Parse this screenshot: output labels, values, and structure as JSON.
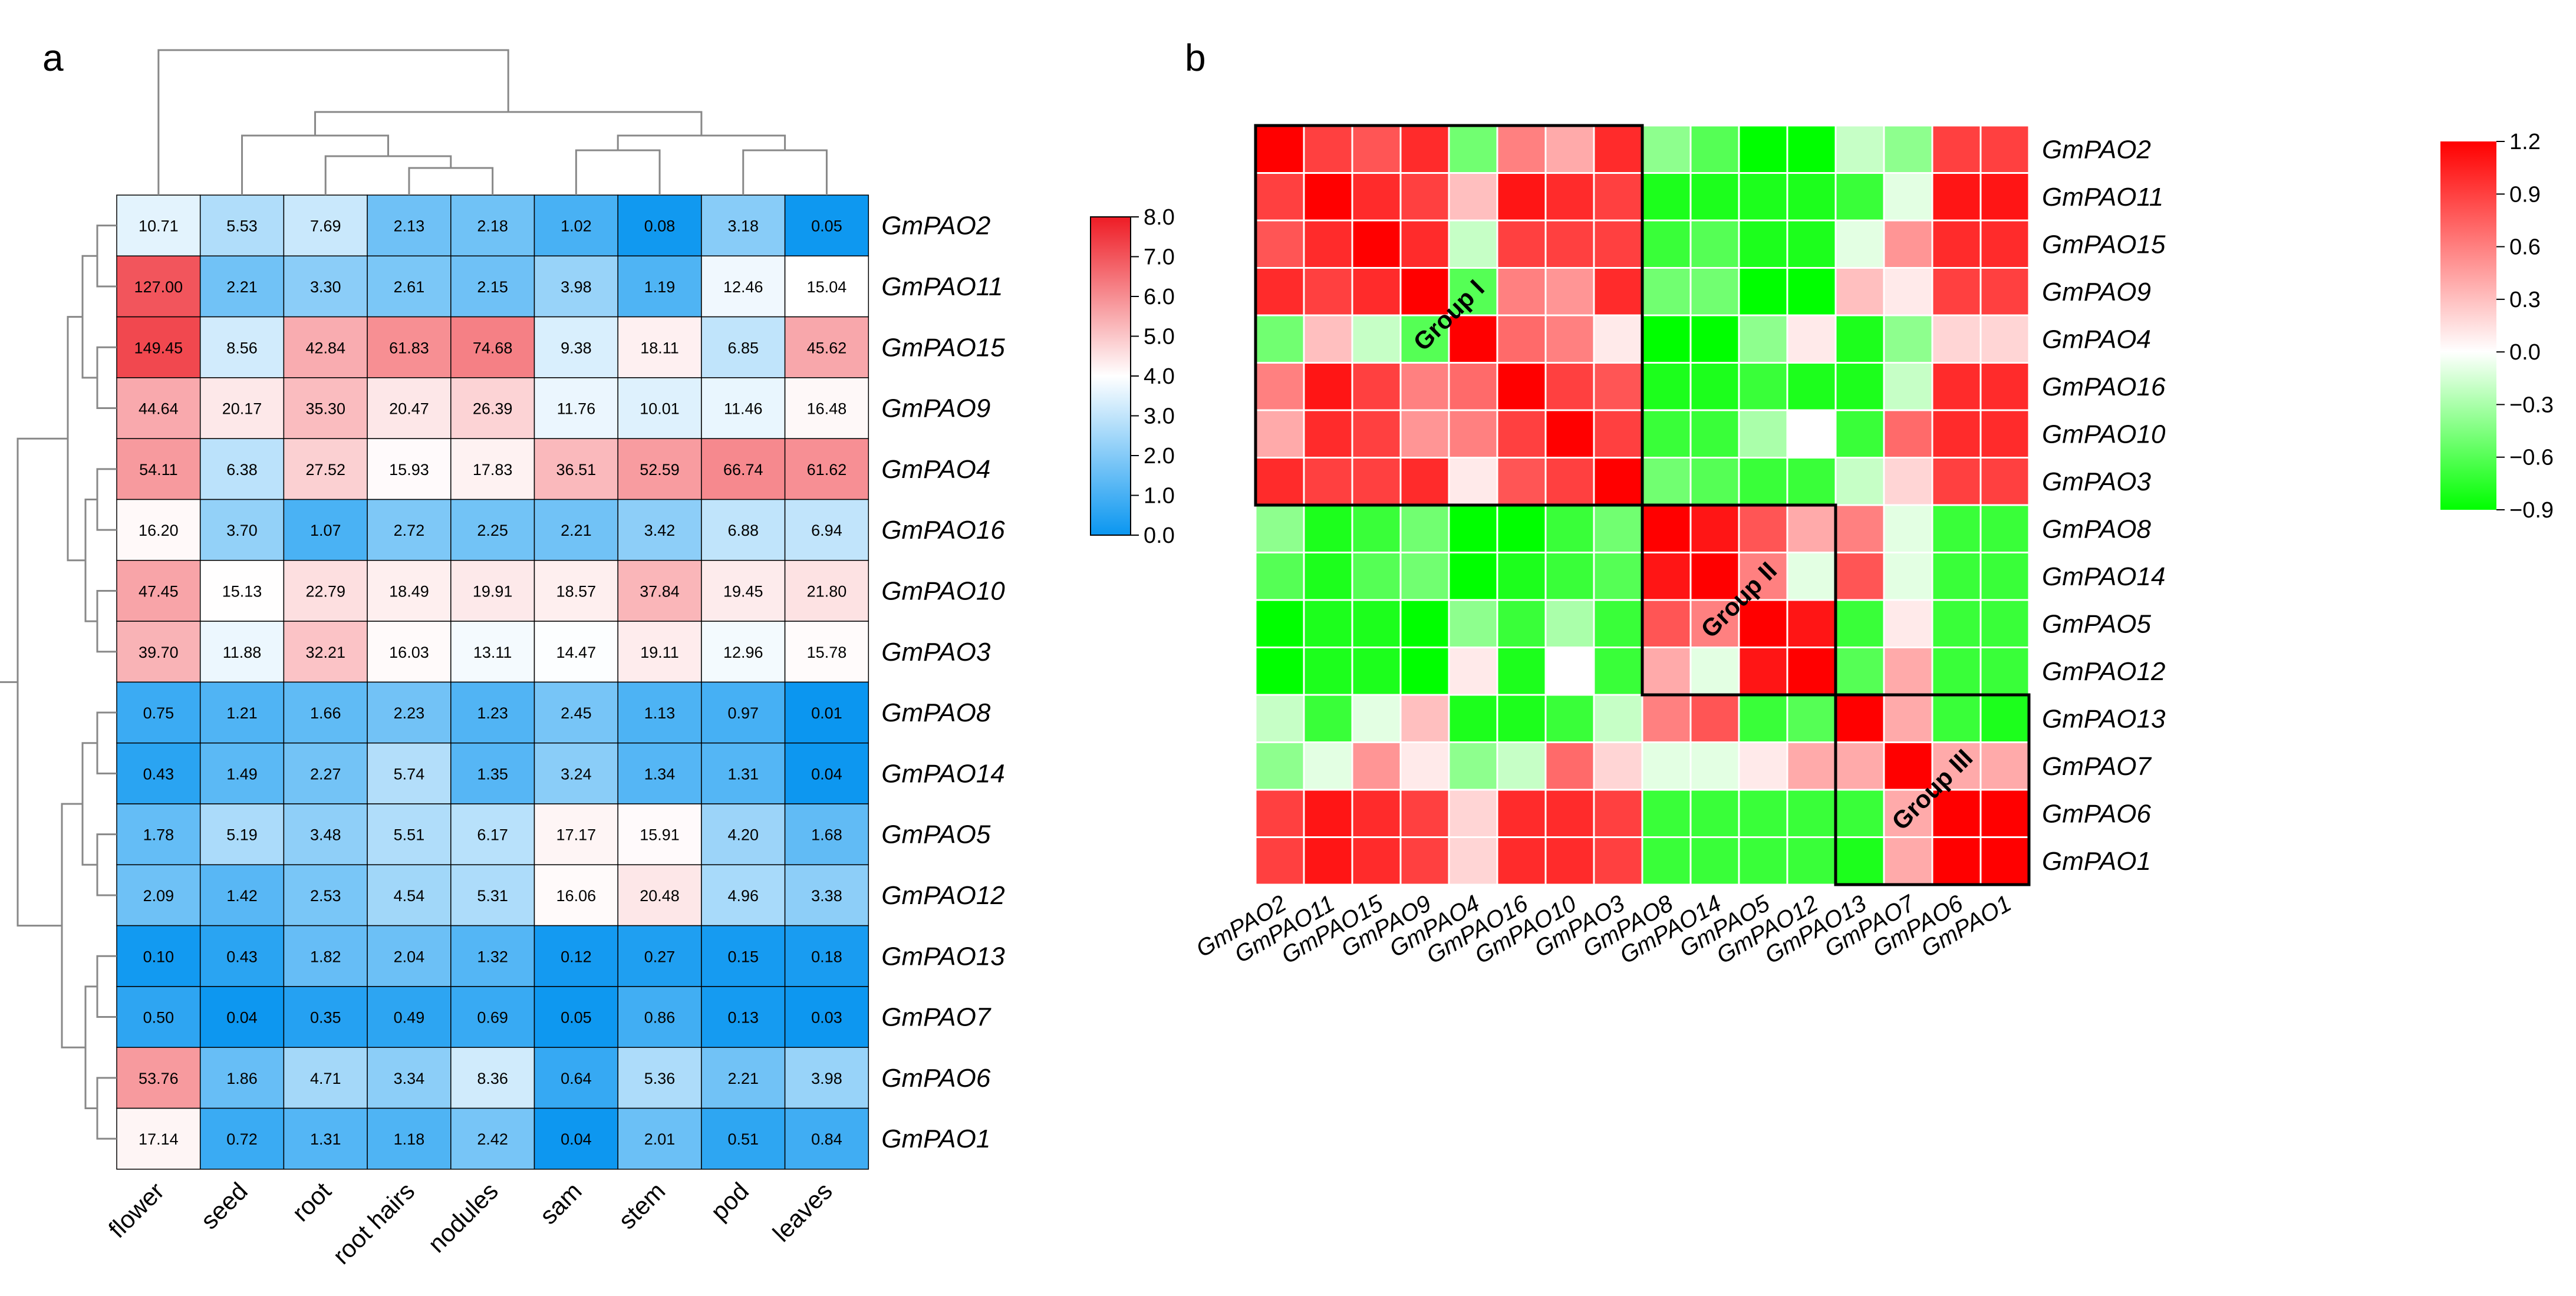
{
  "panels": {
    "a": "a",
    "b": "b"
  },
  "colors": {
    "high": "#ee1c25",
    "mid": "#ffffff",
    "low": "#0a96f0",
    "pos": "#ff0000",
    "zero": "#ffffff",
    "neg": "#00ff00",
    "tree": "#888888",
    "grid": "#000000"
  },
  "chart_data": [
    {
      "type": "heatmap",
      "title": "",
      "rows": [
        "GmPAO2",
        "GmPAO11",
        "GmPAO15",
        "GmPAO9",
        "GmPAO4",
        "GmPAO16",
        "GmPAO10",
        "GmPAO3",
        "GmPAO8",
        "GmPAO14",
        "GmPAO5",
        "GmPAO12",
        "GmPAO13",
        "GmPAO7",
        "GmPAO6",
        "GmPAO1"
      ],
      "columns": [
        "flower",
        "seed",
        "root",
        "root hairs",
        "nodules",
        "sam",
        "stem",
        "pod",
        "leaves"
      ],
      "values": [
        [
          "10.71",
          "5.53",
          "7.69",
          "2.13",
          "2.18",
          "1.02",
          "0.08",
          "3.18",
          "0.05"
        ],
        [
          "127.00",
          "2.21",
          "3.30",
          "2.61",
          "2.15",
          "3.98",
          "1.19",
          "12.46",
          "15.04"
        ],
        [
          "149.45",
          "8.56",
          "42.84",
          "61.83",
          "74.68",
          "9.38",
          "18.11",
          "6.85",
          "45.62"
        ],
        [
          "44.64",
          "20.17",
          "35.30",
          "20.47",
          "26.39",
          "11.76",
          "10.01",
          "11.46",
          "16.48"
        ],
        [
          "54.11",
          "6.38",
          "27.52",
          "15.93",
          "17.83",
          "36.51",
          "52.59",
          "66.74",
          "61.62"
        ],
        [
          "16.20",
          "3.70",
          "1.07",
          "2.72",
          "2.25",
          "2.21",
          "3.42",
          "6.88",
          "6.94"
        ],
        [
          "47.45",
          "15.13",
          "22.79",
          "18.49",
          "19.91",
          "18.57",
          "37.84",
          "19.45",
          "21.80"
        ],
        [
          "39.70",
          "11.88",
          "32.21",
          "16.03",
          "13.11",
          "14.47",
          "19.11",
          "12.96",
          "15.78"
        ],
        [
          "0.75",
          "1.21",
          "1.66",
          "2.23",
          "1.23",
          "2.45",
          "1.13",
          "0.97",
          "0.01"
        ],
        [
          "0.43",
          "1.49",
          "2.27",
          "5.74",
          "1.35",
          "3.24",
          "1.34",
          "1.31",
          "0.04"
        ],
        [
          "1.78",
          "5.19",
          "3.48",
          "5.51",
          "6.17",
          "17.17",
          "15.91",
          "4.20",
          "1.68"
        ],
        [
          "2.09",
          "1.42",
          "2.53",
          "4.54",
          "5.31",
          "16.06",
          "20.48",
          "4.96",
          "3.38"
        ],
        [
          "0.10",
          "0.43",
          "1.82",
          "2.04",
          "1.32",
          "0.12",
          "0.27",
          "0.15",
          "0.18"
        ],
        [
          "0.50",
          "0.04",
          "0.35",
          "0.49",
          "0.69",
          "0.05",
          "0.86",
          "0.13",
          "0.03"
        ],
        [
          "53.76",
          "1.86",
          "4.71",
          "3.34",
          "8.36",
          "0.64",
          "5.36",
          "2.21",
          "3.98"
        ],
        [
          "17.14",
          "0.72",
          "1.31",
          "1.18",
          "2.42",
          "0.04",
          "2.01",
          "0.51",
          "0.84"
        ]
      ],
      "color_scale": {
        "min": 0,
        "max": 8,
        "center": 4,
        "transform": "log2(x+1)"
      },
      "colorbar_ticks": [
        "8.0",
        "7.0",
        "6.0",
        "5.0",
        "4.0",
        "3.0",
        "2.0",
        "1.0",
        "0.0"
      ],
      "row_dendrogram": [
        [
          0,
          1
        ],
        [
          2,
          3
        ],
        [
          16,
          17
        ],
        [
          4,
          5
        ],
        [
          6,
          7
        ],
        [
          19,
          20
        ],
        [
          18,
          21
        ],
        [
          8,
          9
        ],
        [
          10,
          11
        ],
        [
          23,
          24
        ],
        [
          12,
          13
        ],
        [
          14,
          15
        ],
        [
          26,
          27
        ],
        [
          25,
          28
        ],
        [
          22,
          29
        ]
      ],
      "column_dendrogram": [
        [
          3,
          4
        ],
        [
          2,
          9
        ],
        [
          5,
          6
        ],
        [
          7,
          8
        ],
        [
          1,
          10
        ],
        [
          11,
          12
        ],
        [
          13,
          14
        ],
        [
          0,
          15
        ]
      ]
    },
    {
      "type": "heatmap",
      "title": "",
      "labels": [
        "GmPAO2",
        "GmPAO11",
        "GmPAO15",
        "GmPAO9",
        "GmPAO4",
        "GmPAO16",
        "GmPAO10",
        "GmPAO3",
        "GmPAO8",
        "GmPAO14",
        "GmPAO5",
        "GmPAO12",
        "GmPAO13",
        "GmPAO7",
        "GmPAO6",
        "GmPAO1"
      ],
      "values": [
        [
          1.2,
          0.9,
          0.8,
          1.0,
          -0.5,
          0.6,
          0.4,
          1.0,
          -0.4,
          -0.6,
          -0.9,
          -0.9,
          -0.2,
          -0.4,
          0.9,
          0.9
        ],
        [
          0.9,
          1.2,
          1.0,
          0.9,
          0.3,
          1.1,
          1.0,
          0.9,
          -0.8,
          -0.8,
          -0.8,
          -0.8,
          -0.7,
          -0.1,
          1.1,
          1.1
        ],
        [
          0.8,
          1.0,
          1.2,
          1.0,
          -0.2,
          0.9,
          0.9,
          0.9,
          -0.7,
          -0.6,
          -0.8,
          -0.8,
          -0.1,
          0.5,
          1.0,
          1.0
        ],
        [
          1.0,
          0.9,
          1.0,
          1.2,
          -0.6,
          0.6,
          0.5,
          1.0,
          -0.5,
          -0.5,
          -0.9,
          -0.9,
          0.3,
          0.1,
          0.9,
          0.9
        ],
        [
          -0.5,
          0.3,
          -0.2,
          -0.6,
          1.2,
          0.7,
          0.6,
          0.1,
          -0.9,
          -0.9,
          -0.4,
          0.1,
          -0.8,
          -0.4,
          0.2,
          0.2
        ],
        [
          0.6,
          1.1,
          0.9,
          0.6,
          0.7,
          1.2,
          0.9,
          0.8,
          -0.8,
          -0.8,
          -0.7,
          -0.8,
          -0.8,
          -0.2,
          1.0,
          1.0
        ],
        [
          0.4,
          1.0,
          0.9,
          0.5,
          0.6,
          0.9,
          1.2,
          0.9,
          -0.7,
          -0.7,
          -0.3,
          0.0,
          -0.7,
          0.7,
          1.0,
          1.0
        ],
        [
          1.0,
          0.9,
          0.9,
          1.0,
          0.1,
          0.8,
          0.9,
          1.2,
          -0.5,
          -0.6,
          -0.7,
          -0.7,
          -0.2,
          0.2,
          0.9,
          0.9
        ],
        [
          -0.4,
          -0.8,
          -0.7,
          -0.5,
          -0.9,
          -0.9,
          -0.7,
          -0.5,
          1.2,
          1.1,
          0.8,
          0.4,
          0.6,
          -0.1,
          -0.7,
          -0.7
        ],
        [
          -0.6,
          -0.8,
          -0.6,
          -0.5,
          -0.9,
          -0.8,
          -0.7,
          -0.6,
          1.1,
          1.2,
          0.6,
          -0.1,
          0.8,
          -0.1,
          -0.7,
          -0.7
        ],
        [
          -0.9,
          -0.8,
          -0.8,
          -0.9,
          -0.4,
          -0.7,
          -0.3,
          -0.7,
          0.8,
          0.6,
          1.2,
          1.1,
          -0.7,
          0.1,
          -0.7,
          -0.7
        ],
        [
          -0.9,
          -0.8,
          -0.8,
          -0.9,
          0.1,
          -0.8,
          0.0,
          -0.7,
          0.4,
          -0.1,
          1.1,
          1.2,
          -0.6,
          0.4,
          -0.7,
          -0.7
        ],
        [
          -0.2,
          -0.7,
          -0.1,
          0.3,
          -0.8,
          -0.8,
          -0.7,
          -0.2,
          0.6,
          0.8,
          -0.7,
          -0.6,
          1.2,
          0.4,
          -0.7,
          -0.8
        ],
        [
          -0.4,
          -0.1,
          0.5,
          0.1,
          -0.4,
          -0.2,
          0.7,
          0.2,
          -0.1,
          -0.1,
          0.1,
          0.4,
          0.4,
          1.2,
          0.4,
          0.4
        ],
        [
          0.9,
          1.1,
          1.0,
          0.9,
          0.2,
          1.0,
          1.0,
          0.9,
          -0.7,
          -0.7,
          -0.7,
          -0.7,
          -0.7,
          0.4,
          1.2,
          1.2
        ],
        [
          0.9,
          1.1,
          1.0,
          0.9,
          0.2,
          1.0,
          1.0,
          0.9,
          -0.7,
          -0.7,
          -0.7,
          -0.7,
          -0.8,
          0.4,
          1.2,
          1.2
        ]
      ],
      "color_scale": {
        "min": -0.9,
        "max": 1.2,
        "center": 0
      },
      "colorbar_ticks": [
        "1.2",
        "0.9",
        "0.6",
        "0.3",
        "0.0",
        "−0.3",
        "−0.6",
        "−0.9"
      ],
      "groups": [
        {
          "name": "Group I",
          "start": 0,
          "end": 7
        },
        {
          "name": "Group II",
          "start": 8,
          "end": 11
        },
        {
          "name": "Group III",
          "start": 12,
          "end": 15
        }
      ]
    }
  ]
}
